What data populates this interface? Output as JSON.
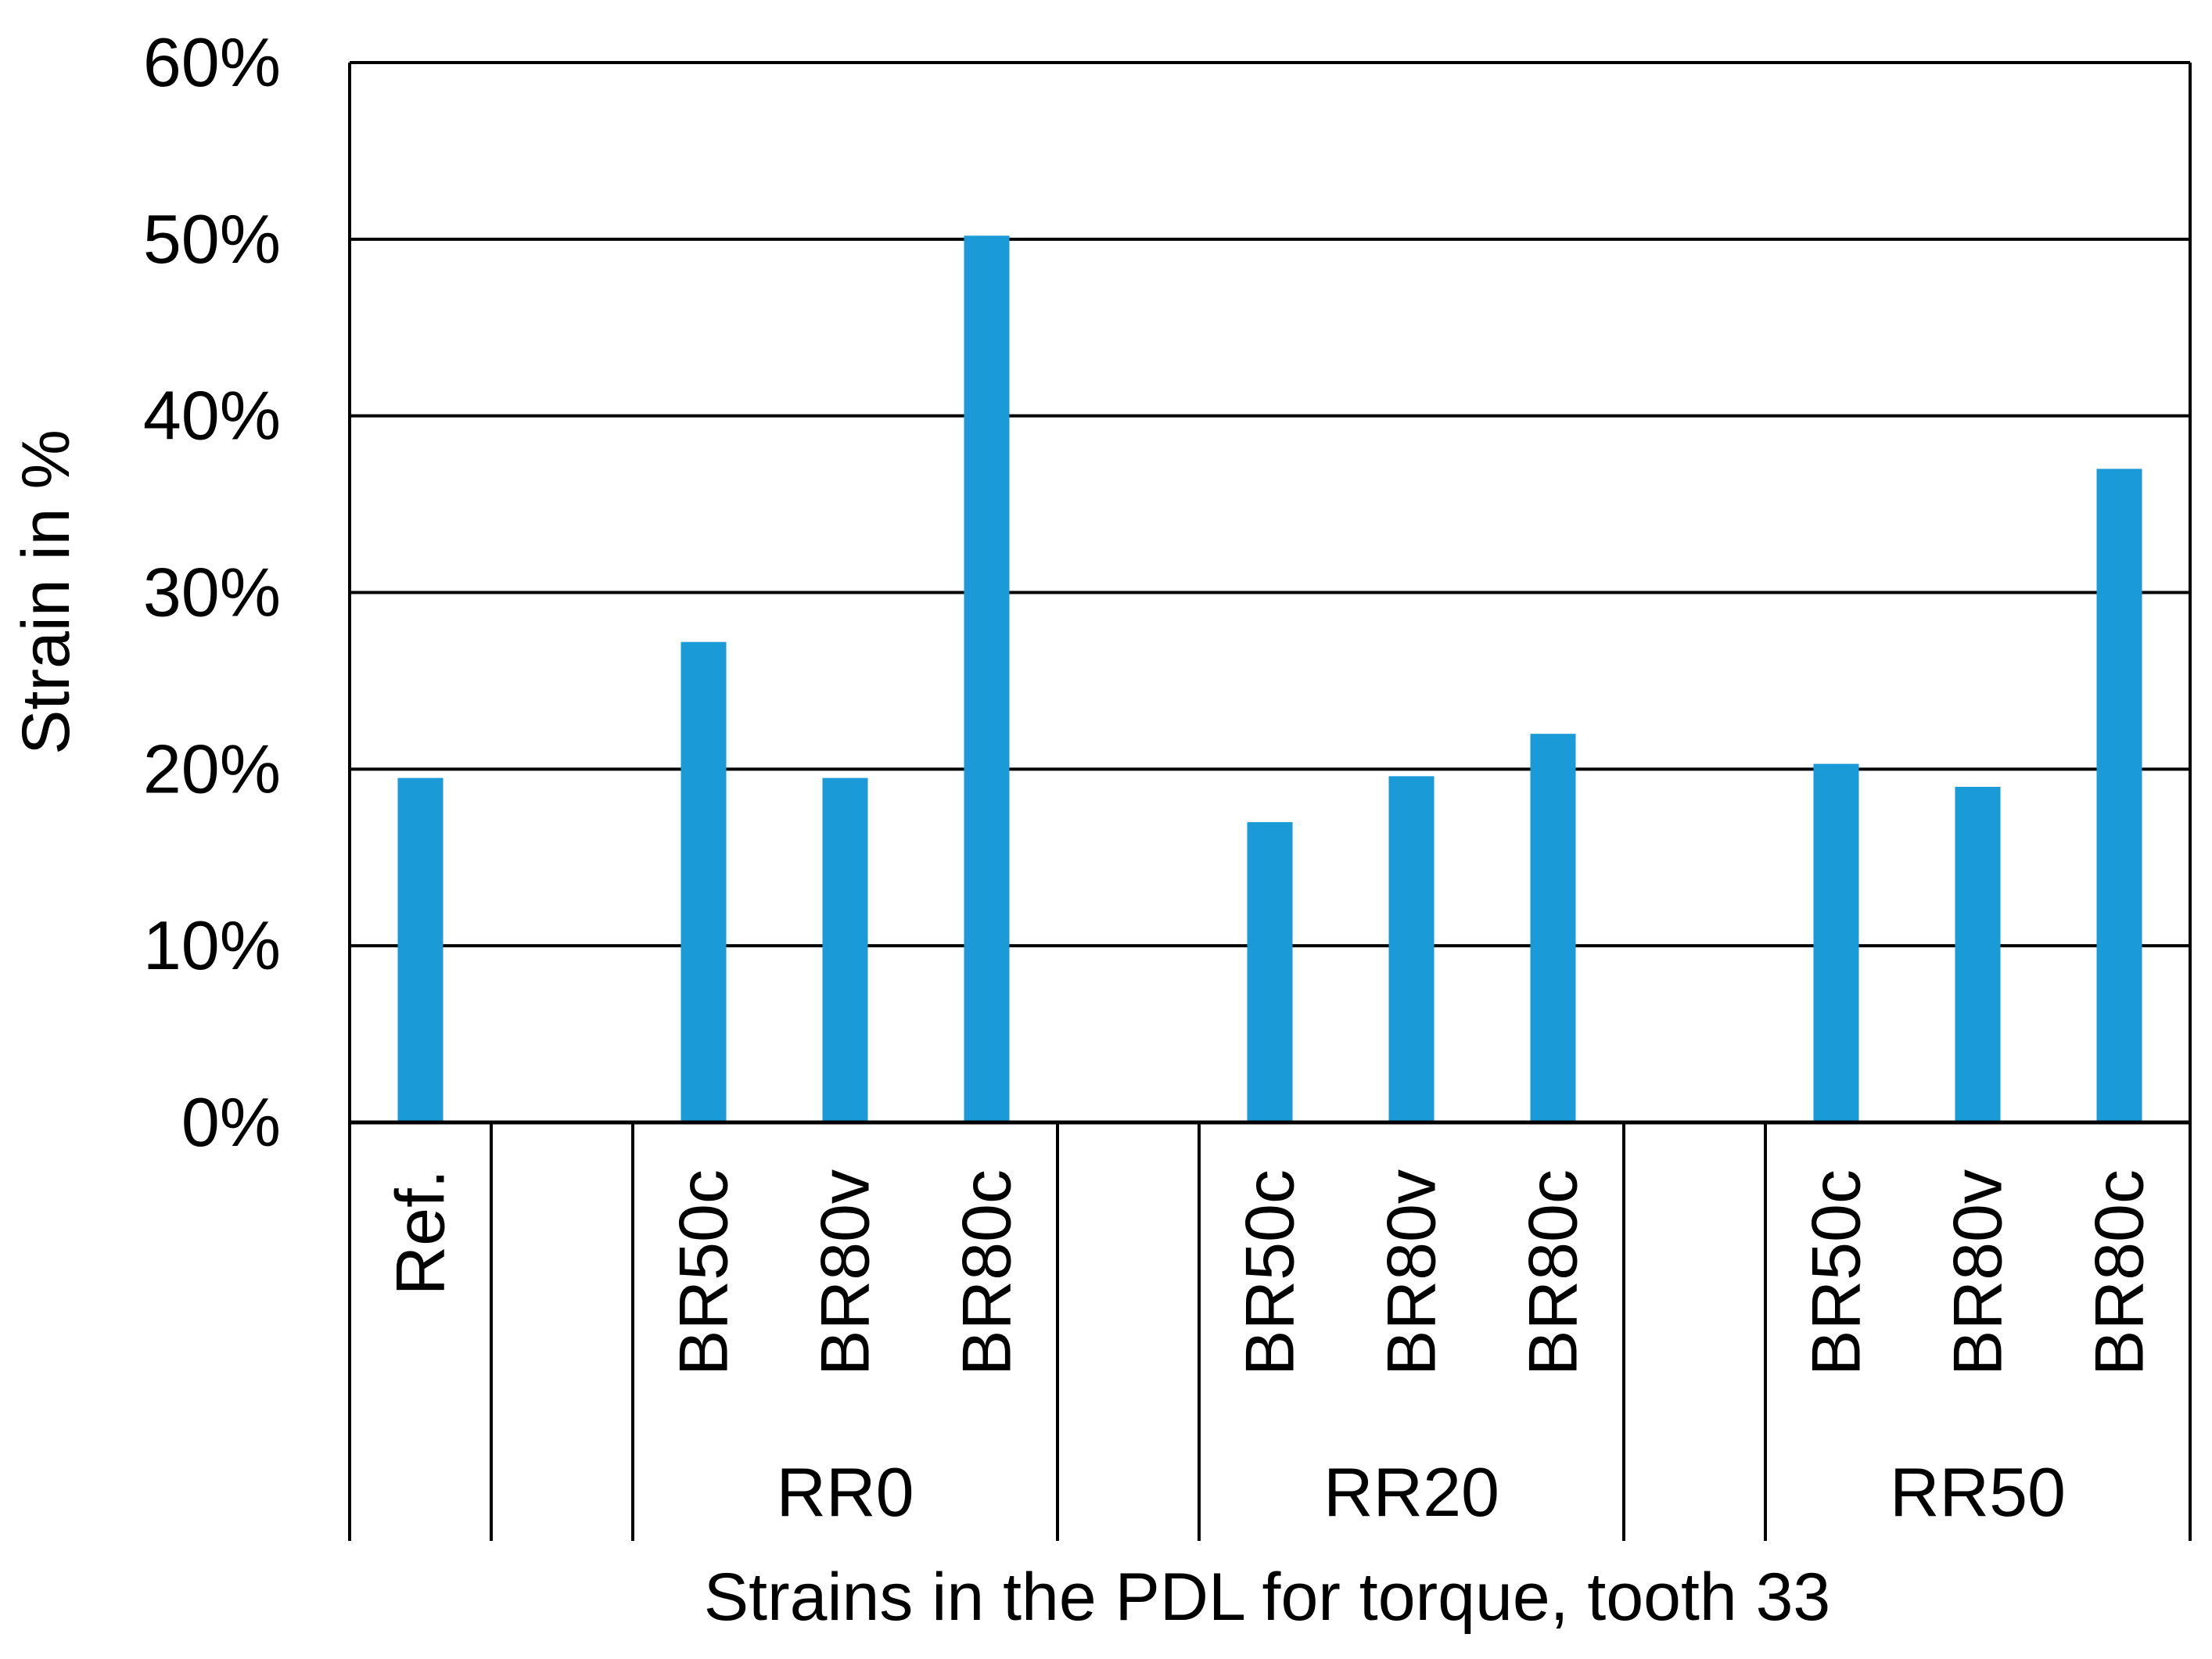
{
  "chart_data": {
    "type": "bar",
    "title": "",
    "xlabel": "Strains in the PDL for torque, tooth 33",
    "ylabel": "Strain in %",
    "ylim": [
      0,
      60
    ],
    "y_ticks": [
      "0%",
      "10%",
      "20%",
      "30%",
      "40%",
      "50%",
      "60%"
    ],
    "grid": true,
    "bar_color": "#1a9bd7",
    "categories": [
      "Ref.",
      "",
      "BR50c",
      "BR80v",
      "BR80c",
      "",
      "BR50c",
      "BR80v",
      "BR80c",
      "",
      "BR50c",
      "BR80v",
      "BR80c"
    ],
    "values": [
      19.5,
      null,
      27.2,
      19.5,
      50.2,
      null,
      17.0,
      19.6,
      22.0,
      null,
      20.3,
      19.0,
      37.0
    ],
    "groups": [
      {
        "label": "RR0",
        "categories": [
          "BR50c",
          "BR80v",
          "BR80c"
        ]
      },
      {
        "label": "RR20",
        "categories": [
          "BR50c",
          "BR80v",
          "BR80c"
        ]
      },
      {
        "label": "RR50",
        "categories": [
          "BR50c",
          "BR80v",
          "BR80c"
        ]
      }
    ]
  }
}
